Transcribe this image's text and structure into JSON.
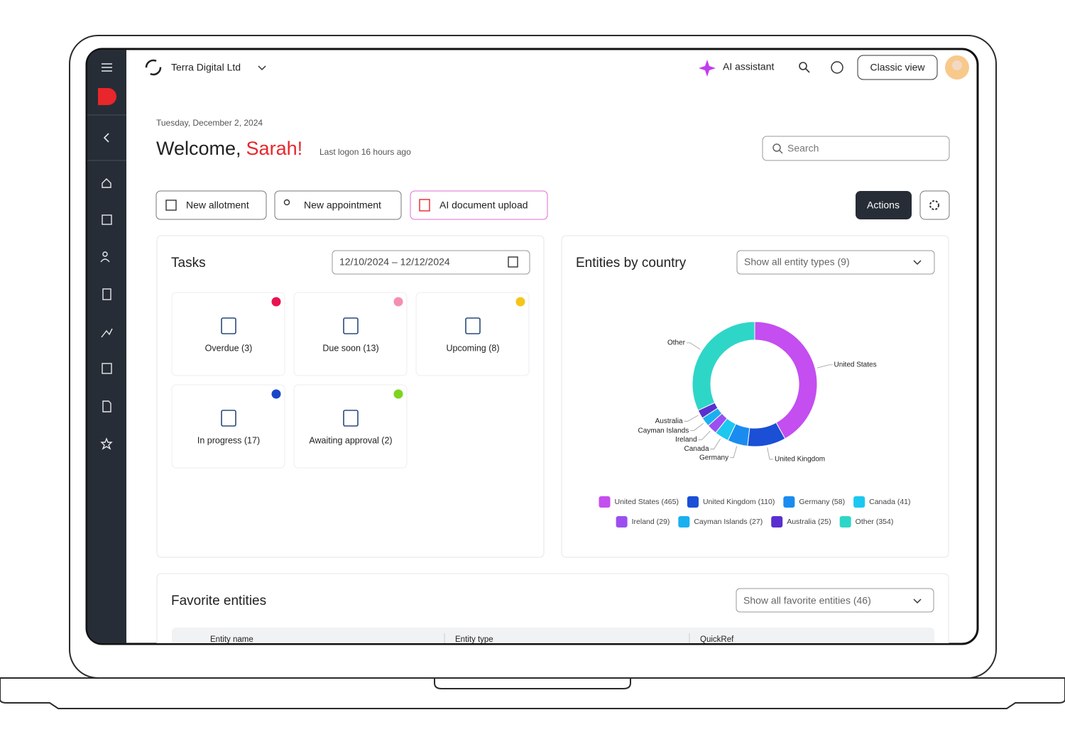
{
  "header": {
    "company": "Terra Digital Ltd",
    "ai_assistant": "AI assistant",
    "classic_view": "Classic view"
  },
  "welcome": {
    "date": "Tuesday, December 2, 2024",
    "greeting": "Welcome,",
    "name": "Sarah!",
    "last_logon": "Last logon 16 hours ago"
  },
  "search": "Search",
  "buttons": [
    "New allotment",
    "New appointment",
    "AI document upload"
  ],
  "actions": "Actions",
  "tasks": {
    "title": "Tasks",
    "date_range": "12/10/2024 – 12/12/2024",
    "cards": [
      {
        "label": "Overdue (3)",
        "color": "#e8134f"
      },
      {
        "label": "Due soon (13)",
        "color": "#f48fb1"
      },
      {
        "label": "Upcoming (8)",
        "color": "#f5c518"
      },
      {
        "label": "In progress (17)",
        "color": "#1846c8"
      },
      {
        "label": "Awaiting approval (2)",
        "color": "#7ed321"
      }
    ]
  },
  "chart_data": {
    "type": "pie",
    "donut": true,
    "title": "Entities by country",
    "filter": "Show all entity types (9)",
    "categories": [
      "United States",
      "United Kingdom",
      "Germany",
      "Canada",
      "Ireland",
      "Cayman Islands",
      "Australia",
      "Other"
    ],
    "values": [
      465,
      110,
      58,
      41,
      29,
      27,
      25,
      354
    ],
    "colors": [
      "#c44ef0",
      "#1a4fd6",
      "#1a8cf0",
      "#1cc7f0",
      "#9b4ff0",
      "#1ab0f0",
      "#5a2fd0",
      "#2ed6c8"
    ],
    "legend_labels": [
      "United States (465)",
      "United Kingdom (110)",
      "Germany (58)",
      "Canada (41)",
      "Ireland (29)",
      "Cayman Islands (27)",
      "Australia (25)",
      "Other (354)"
    ]
  },
  "favorites": {
    "title": "Favorite entities",
    "filter": "Show all favorite entities (46)",
    "columns": [
      "Entity name",
      "Entity type",
      "QuickRef"
    ]
  }
}
